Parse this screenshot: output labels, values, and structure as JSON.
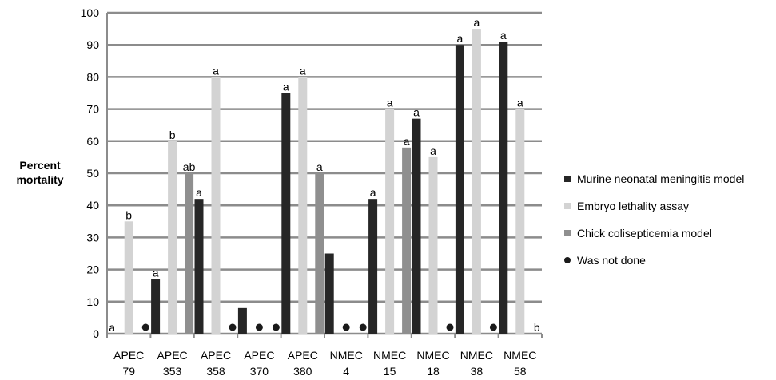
{
  "chart_data": {
    "type": "bar",
    "title": "",
    "xlabel": "",
    "ylabel": "Percent mortality",
    "ylim": [
      0,
      100
    ],
    "yticks": [
      0,
      10,
      20,
      30,
      40,
      50,
      60,
      70,
      80,
      90,
      100
    ],
    "grid": true,
    "legend_position": "right",
    "categories": [
      [
        "APEC",
        "79"
      ],
      [
        "APEC",
        "353"
      ],
      [
        "APEC",
        "358"
      ],
      [
        "APEC",
        "370"
      ],
      [
        "APEC",
        "380"
      ],
      [
        "NMEC",
        "4"
      ],
      [
        "NMEC",
        "15"
      ],
      [
        "NMEC",
        "18"
      ],
      [
        "NMEC",
        "38"
      ],
      [
        "NMEC",
        "58"
      ]
    ],
    "series": [
      {
        "name": "Murine neonatal meningitis model",
        "color": "#262626",
        "values": [
          0,
          17,
          42,
          8,
          75,
          25,
          42,
          67,
          90,
          91
        ],
        "labels": [
          "a",
          "a",
          "a",
          "",
          "a",
          "",
          "a",
          "a",
          "a",
          "a"
        ]
      },
      {
        "name": "Embryo lethality assay",
        "color": "#d3d3d3",
        "values": [
          35,
          60,
          80,
          null,
          80,
          null,
          70,
          55,
          95,
          70
        ],
        "labels": [
          "b",
          "b",
          "a",
          "",
          "a",
          "",
          "a",
          "a",
          "a",
          "a"
        ]
      },
      {
        "name": "Chick colisepticemia model",
        "color": "#8f8f8f",
        "values": [
          null,
          50,
          null,
          null,
          50,
          null,
          58,
          null,
          null,
          0
        ],
        "labels": [
          "",
          "ab",
          "",
          "",
          "a",
          "",
          "a",
          "",
          "",
          "b"
        ]
      }
    ],
    "not_done_marker": {
      "name": "Was not done",
      "color": "#1a1a1a"
    }
  }
}
